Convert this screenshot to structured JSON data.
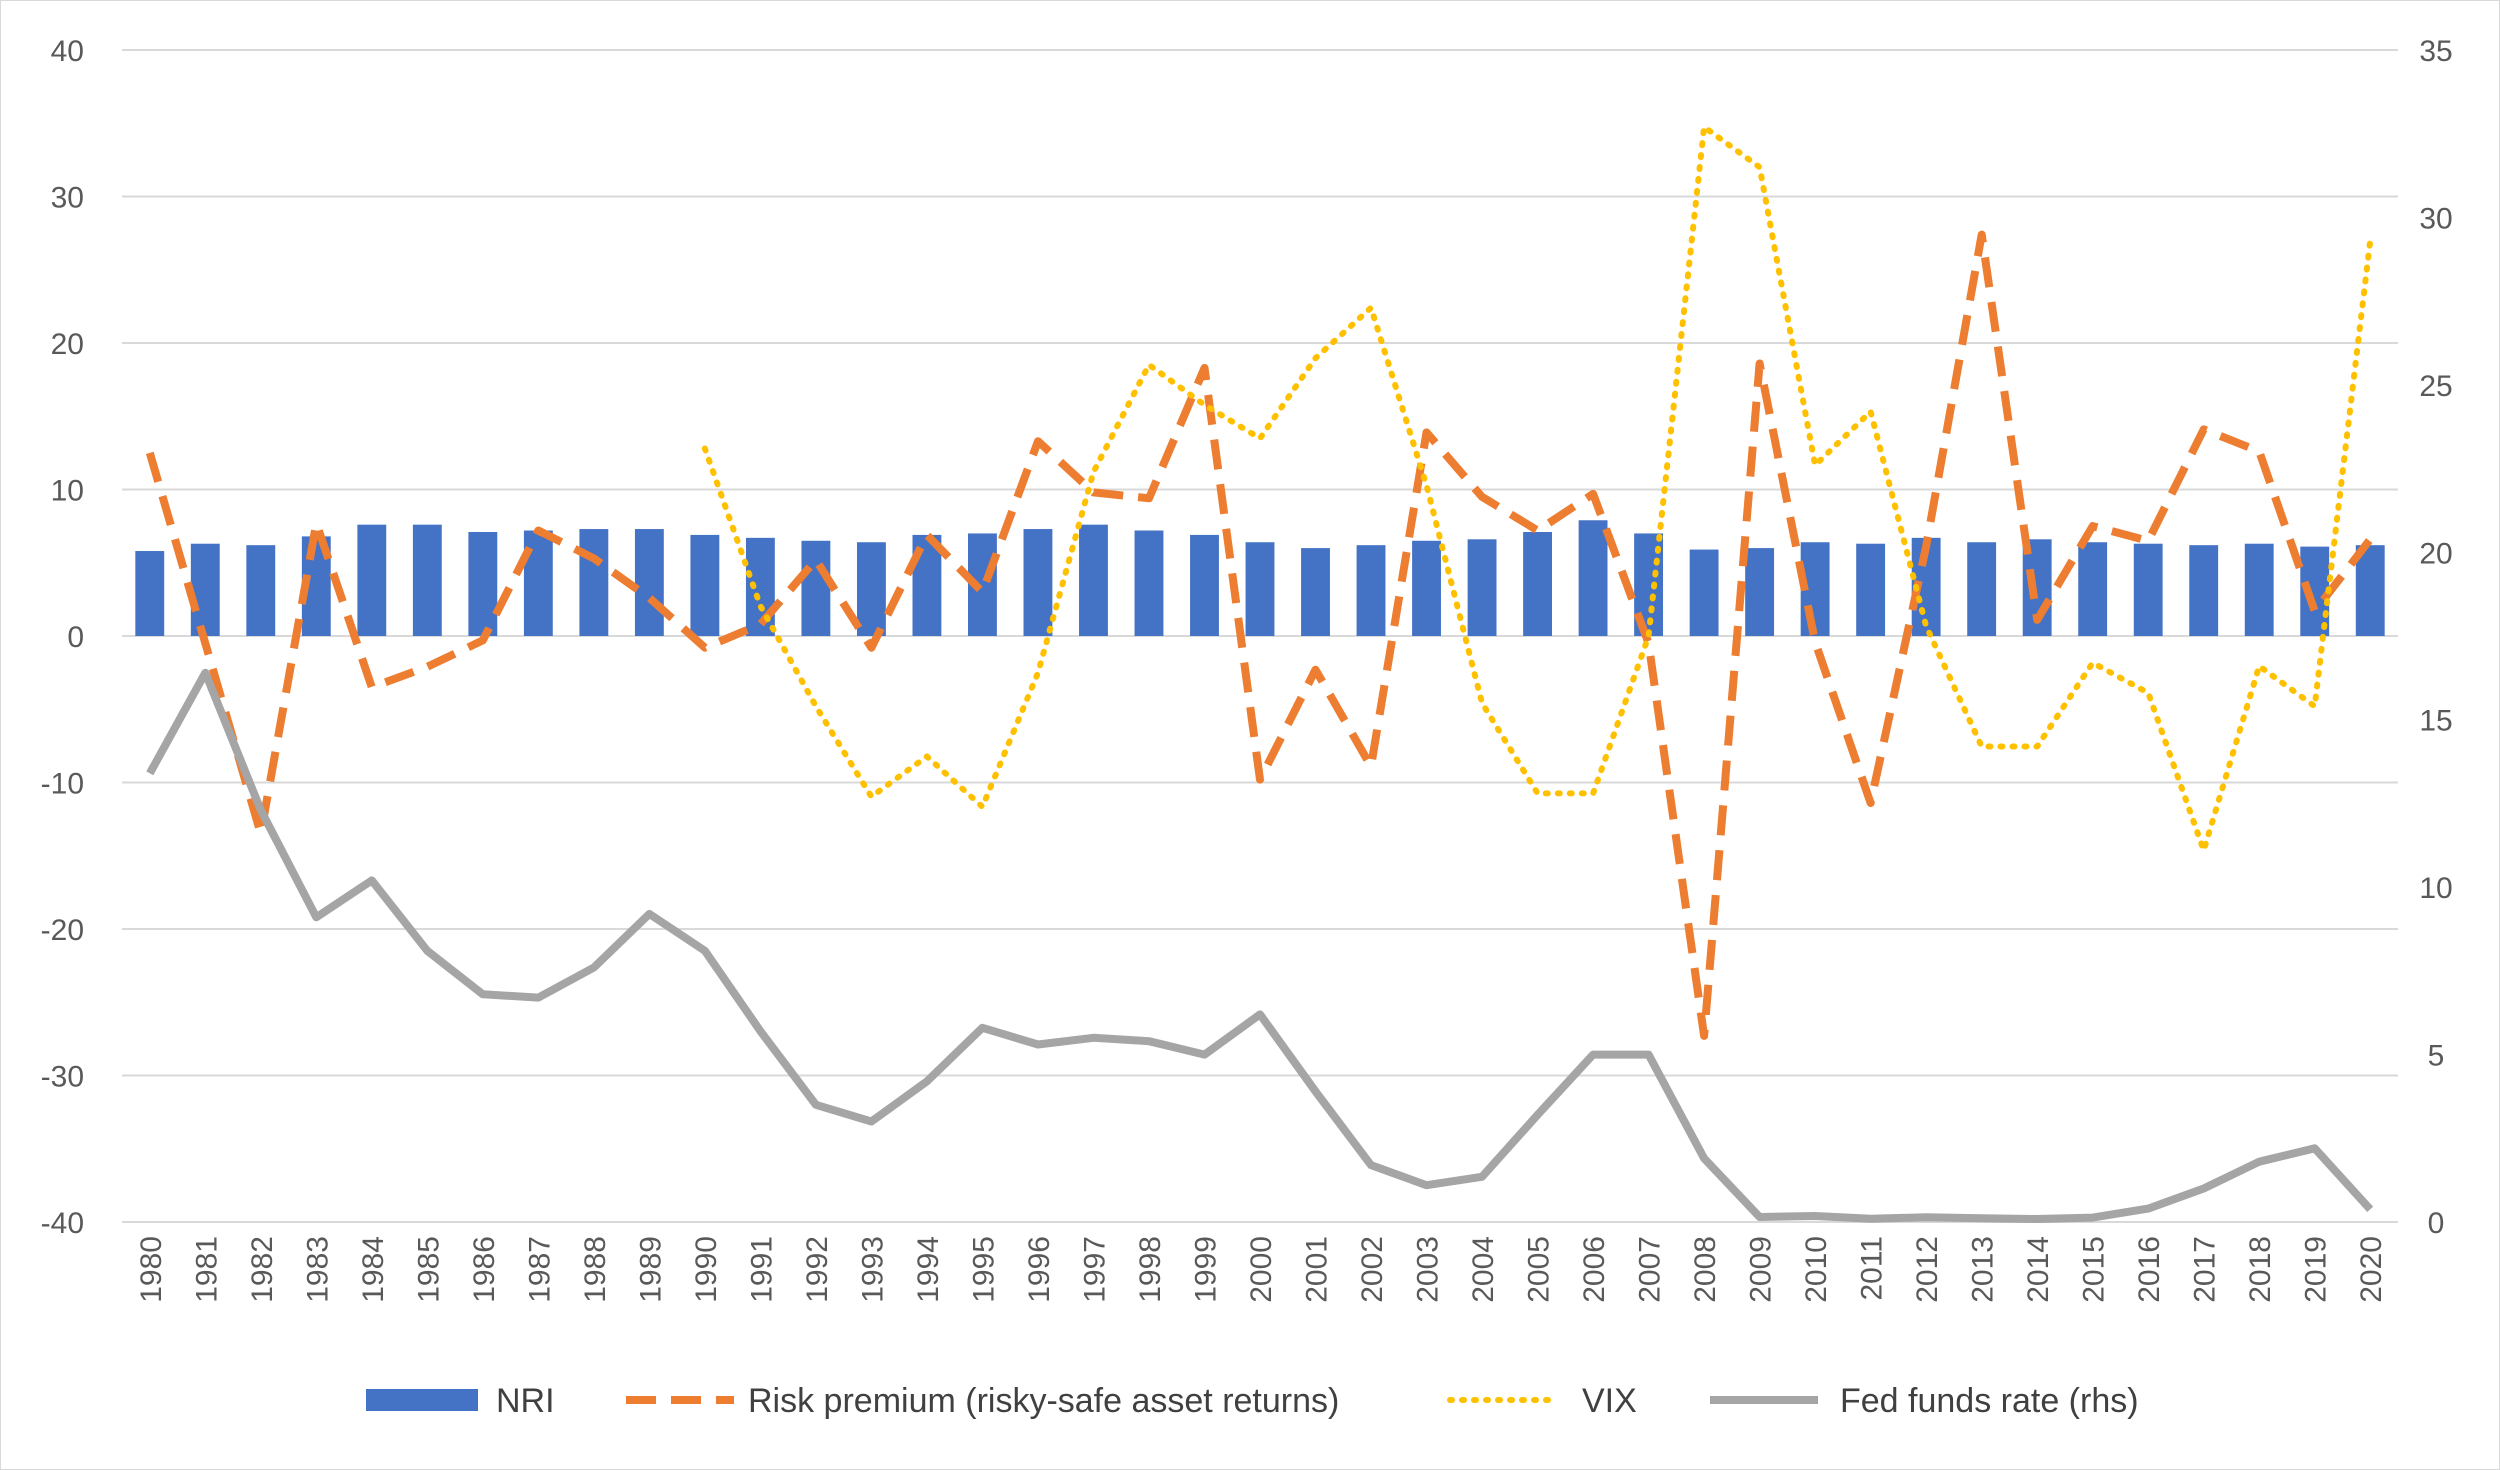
{
  "chart_data": {
    "type": "bar",
    "title": "",
    "xlabel": "",
    "ylabel": "",
    "categories": [
      "1980",
      "1981",
      "1982",
      "1983",
      "1984",
      "1985",
      "1986",
      "1987",
      "1988",
      "1989",
      "1990",
      "1991",
      "1992",
      "1993",
      "1994",
      "1995",
      "1996",
      "1997",
      "1998",
      "1999",
      "2000",
      "2001",
      "2002",
      "2003",
      "2004",
      "2005",
      "2006",
      "2007",
      "2008",
      "2009",
      "2010",
      "2011",
      "2012",
      "2013",
      "2014",
      "2015",
      "2016",
      "2017",
      "2018",
      "2019",
      "2020"
    ],
    "ylim": [
      -40,
      40
    ],
    "y_ticks": [
      "40",
      "30",
      "20",
      "10",
      "0",
      "-10",
      "-20",
      "-30",
      "-40"
    ],
    "y2lim": [
      0,
      35
    ],
    "y2_ticks": [
      "35",
      "30",
      "25",
      "20",
      "15",
      "10",
      "5",
      "0"
    ],
    "grid": true,
    "legend_position": "bottom",
    "series": [
      {
        "name": "NRI",
        "type": "bar",
        "axis": "left",
        "color": "#4472C4",
        "values": [
          5.8,
          6.3,
          6.2,
          6.8,
          7.6,
          7.6,
          7.1,
          7.2,
          7.3,
          7.3,
          6.9,
          6.7,
          6.5,
          6.4,
          6.9,
          7.0,
          7.3,
          7.6,
          7.2,
          6.9,
          6.4,
          6.0,
          6.2,
          6.5,
          6.6,
          7.1,
          7.9,
          7.0,
          5.9,
          6.0,
          6.4,
          6.3,
          6.7,
          6.4,
          6.6,
          6.4,
          6.3,
          6.2,
          6.3,
          6.1,
          6.2
        ]
      },
      {
        "name": "Risk premium (risky-safe asset returns)",
        "type": "line",
        "style": "dashed",
        "axis": "left",
        "color": "#ED7D31",
        "values": [
          12.5,
          -0.5,
          -13.5,
          7.7,
          -3.5,
          -2.1,
          -0.3,
          7.2,
          5.3,
          2.6,
          -0.8,
          0.8,
          5.2,
          -0.8,
          6.9,
          3.0,
          13.3,
          9.8,
          9.4,
          18.3,
          -9.8,
          -2.3,
          -8.9,
          13.9,
          9.5,
          7.2,
          9.7,
          -0.5,
          -27.3,
          18.6,
          -0.4,
          -11.4,
          6.1,
          27.4,
          1.1,
          7.5,
          6.5,
          14.1,
          12.6,
          1.7,
          6.6
        ]
      },
      {
        "name": "VIX",
        "type": "line",
        "style": "dotted",
        "axis": "right",
        "color": "#FFC000",
        "values": [
          null,
          null,
          null,
          null,
          null,
          null,
          null,
          null,
          null,
          null,
          23.1,
          18.4,
          15.4,
          12.7,
          13.9,
          12.4,
          16.4,
          22.4,
          25.6,
          24.4,
          23.4,
          25.8,
          27.3,
          22.0,
          15.5,
          12.8,
          12.8,
          17.5,
          32.7,
          31.5,
          22.6,
          24.2,
          17.8,
          14.2,
          14.2,
          16.7,
          15.8,
          11.1,
          16.6,
          15.4,
          29.3
        ]
      },
      {
        "name": "Fed funds rate (rhs)",
        "type": "line",
        "style": "solid",
        "axis": "right",
        "color": "#A5A5A5",
        "values": [
          13.4,
          16.4,
          12.3,
          9.1,
          10.2,
          8.1,
          6.8,
          6.7,
          7.6,
          9.2,
          8.1,
          5.7,
          3.5,
          3.0,
          4.2,
          5.8,
          5.3,
          5.5,
          5.4,
          5.0,
          6.2,
          3.9,
          1.7,
          1.1,
          1.35,
          3.2,
          5.0,
          5.0,
          1.9,
          0.15,
          0.18,
          0.1,
          0.14,
          0.11,
          0.09,
          0.13,
          0.4,
          1.0,
          1.8,
          2.2,
          0.38
        ]
      }
    ]
  }
}
